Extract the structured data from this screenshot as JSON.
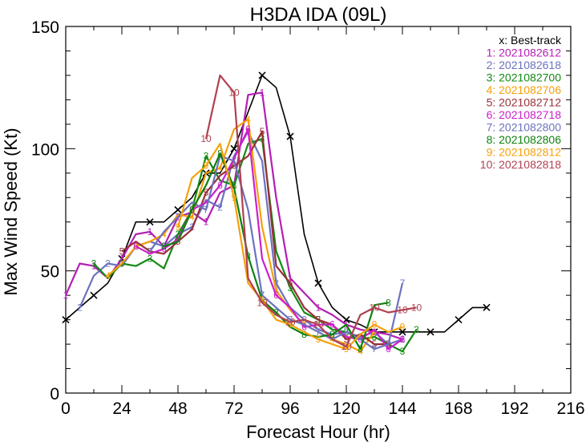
{
  "chart_data": {
    "type": "line",
    "title": "H3DA  IDA (09L)",
    "xlabel": "Forecast Hour (hr)",
    "ylabel": "Max Wind Speed (Kt)",
    "xlim": [
      0,
      216
    ],
    "ylim": [
      0,
      150
    ],
    "xticks": [
      0,
      24,
      48,
      72,
      96,
      120,
      144,
      168,
      192,
      216
    ],
    "yticks": [
      0,
      50,
      100,
      150
    ],
    "grid": false,
    "legend_position": "top-right",
    "series": [
      {
        "name": "Best-track",
        "marker": "x",
        "color": "#000000",
        "start_hour": 0,
        "values": [
          30,
          35,
          40,
          45,
          55,
          70,
          70,
          70,
          75,
          80,
          90,
          90,
          100,
          115,
          130,
          125,
          105,
          65,
          45,
          35,
          30,
          28,
          25,
          25,
          25,
          25,
          25,
          25,
          30,
          35,
          35
        ]
      },
      {
        "name": "2021082612",
        "marker": "1",
        "color": "#b41fb4",
        "start_hour": 0,
        "values": [
          40,
          53,
          52,
          47,
          55,
          65,
          66,
          60,
          72,
          74,
          70,
          82,
          85,
          122,
          123,
          80,
          47,
          41,
          35,
          32,
          28,
          26,
          25,
          24,
          22
        ]
      },
      {
        "name": "2021082618",
        "marker": "2",
        "color": "#6b72be",
        "start_hour": 6,
        "values": [
          35,
          48,
          53,
          52,
          60,
          62,
          60,
          65,
          68,
          79,
          76,
          97,
          107,
          95,
          45,
          35,
          30,
          26,
          24,
          25,
          23,
          25,
          20,
          22
        ]
      },
      {
        "name": "2021082700",
        "marker": "3",
        "color": "#138a13",
        "start_hour": 12,
        "values": [
          53,
          47,
          53,
          52,
          55,
          51,
          65,
          75,
          97,
          87,
          85,
          102,
          104,
          58,
          43,
          33,
          30,
          26,
          25,
          22,
          23,
          20,
          17,
          26
        ]
      },
      {
        "name": "2021082706",
        "marker": "4",
        "color": "#f5a00a",
        "start_hour": 18,
        "values": [
          48,
          53,
          60,
          62,
          65,
          73,
          72,
          90,
          92,
          108,
          112,
          68,
          42,
          34,
          28,
          25,
          22,
          20,
          17,
          25
        ]
      },
      {
        "name": "2021082712",
        "marker": "5",
        "color": "#983038",
        "start_hour": 24,
        "values": [
          58,
          62,
          58,
          57,
          62,
          67,
          82,
          89,
          93,
          97,
          107,
          52,
          45,
          35,
          30,
          28,
          22,
          24,
          20,
          20
        ]
      },
      {
        "name": "2021082718",
        "marker": "6",
        "color": "#cc1fcc",
        "start_hour": 30,
        "values": [
          60,
          57,
          59,
          63,
          75,
          78,
          85,
          96,
          108,
          55,
          40,
          35,
          27,
          28,
          28,
          23,
          22,
          26,
          18,
          22
        ]
      },
      {
        "name": "2021082800",
        "marker": "7",
        "color": "#6b72be",
        "start_hour": 36,
        "values": [
          58,
          66,
          72,
          78,
          75,
          97,
          95,
          75,
          40,
          35,
          30,
          28,
          25,
          22,
          25,
          22,
          18,
          20,
          45
        ]
      },
      {
        "name": "2021082806",
        "marker": "8",
        "color": "#0f800f",
        "start_hour": 42,
        "values": [
          60,
          62,
          75,
          85,
          98,
          84,
          56,
          38,
          33,
          27,
          24,
          23,
          24,
          28,
          18,
          36,
          37
        ]
      },
      {
        "name": "2021082812",
        "marker": "9",
        "color": "#f5a00a",
        "start_hour": 48,
        "values": [
          68,
          88,
          93,
          102,
          80,
          45,
          38,
          30,
          28,
          25,
          22,
          20,
          18,
          24,
          28,
          25,
          27
        ]
      },
      {
        "name": "2021082818",
        "marker": "10",
        "color": "#b14050",
        "start_hour": 60,
        "values": [
          104,
          130,
          123,
          47,
          37,
          32,
          29,
          30,
          28,
          22,
          19,
          32,
          35,
          33,
          34,
          35
        ]
      }
    ]
  }
}
